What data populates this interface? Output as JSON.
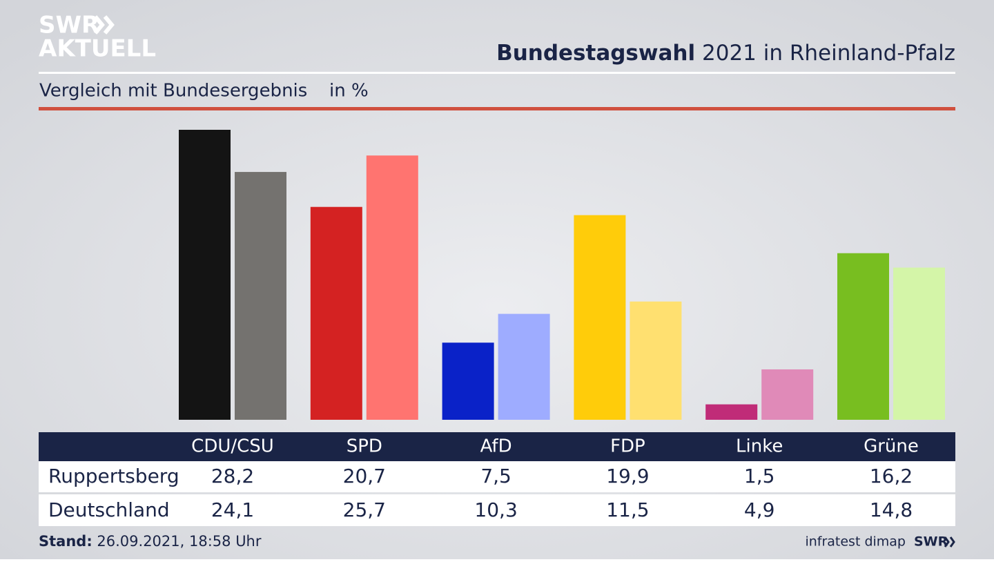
{
  "logo": [
    "SWR",
    "AKTUELL"
  ],
  "chart_data": {
    "type": "bar",
    "title": [
      "Bundestagswahl",
      "2021 in Rheinland-Pfalz"
    ],
    "subtitle": "Vergleich mit Bundesergebnis",
    "unit": "in %",
    "categories": [
      "CDU/CSU",
      "SPD",
      "AfD",
      "FDP",
      "Linke",
      "Grüne"
    ],
    "series": [
      {
        "name": "Ruppertsberg",
        "colors": [
          "#141414",
          "#d42222",
          "#0a22c8",
          "#ffcc0a",
          "#c02c78",
          "#78be20"
        ],
        "values": [
          28.2,
          20.7,
          7.5,
          19.9,
          1.5,
          16.2
        ],
        "value_labels": [
          "28,2",
          "20,7",
          "7,5",
          "19,9",
          "1,5",
          "16,2"
        ]
      },
      {
        "name": "Deutschland",
        "colors": [
          "#74726f",
          "#ff7470",
          "#9eacff",
          "#ffe070",
          "#e08ab8",
          "#d4f5a8"
        ],
        "values": [
          24.1,
          25.7,
          10.3,
          11.5,
          4.9,
          14.8
        ],
        "value_labels": [
          "24,1",
          "25,7",
          "10,3",
          "11,5",
          "4,9",
          "14,8"
        ]
      }
    ]
  },
  "footer": {
    "stand_label": "Stand:",
    "stand": "26.09.2021, 18:58 Uhr",
    "source": "infratest dimap",
    "logo": "SWR"
  }
}
